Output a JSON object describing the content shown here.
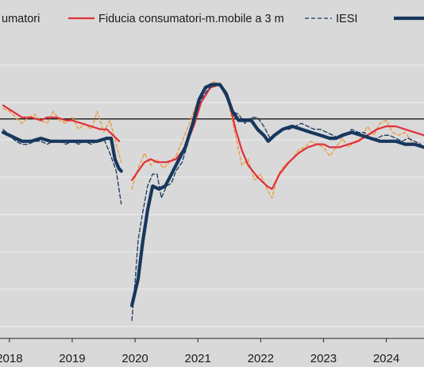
{
  "chart_data": {
    "type": "line",
    "xlabel": "",
    "ylabel": "",
    "xlim": [
      2017.85,
      2024.6
    ],
    "ylim": [
      0,
      100
    ],
    "x_ticks": [
      {
        "x": 2018.0,
        "label": "2018"
      },
      {
        "x": 2019.0,
        "label": "2019"
      },
      {
        "x": 2020.0,
        "label": "2020"
      },
      {
        "x": 2021.0,
        "label": "2021"
      },
      {
        "x": 2022.0,
        "label": "2022"
      },
      {
        "x": 2023.0,
        "label": "2023"
      },
      {
        "x": 2024.0,
        "label": "2024"
      }
    ],
    "hgrid": [
      4,
      16.5,
      29,
      41.5,
      54,
      66.5,
      79,
      91.5
    ],
    "reference_line": 73.5,
    "legend": [
      {
        "label": "umatori",
        "style": "dashed-orange"
      },
      {
        "label": "Fiducia consumatori-m.mobile a 3 m",
        "style": "solid-red"
      },
      {
        "label": "IESI",
        "style": "dashed-navy"
      },
      {
        "label": "",
        "style": "thick-navy"
      }
    ],
    "series": [
      {
        "key": "consumer_confidence",
        "color": "#ed9b3a",
        "width": 1.4,
        "dash": "4,3",
        "points": [
          [
            2017.9,
            77
          ],
          [
            2018.0,
            76
          ],
          [
            2018.1,
            74
          ],
          [
            2018.2,
            72
          ],
          [
            2018.3,
            74
          ],
          [
            2018.4,
            75
          ],
          [
            2018.5,
            73
          ],
          [
            2018.6,
            72
          ],
          [
            2018.7,
            76
          ],
          [
            2018.8,
            73
          ],
          [
            2018.9,
            72
          ],
          [
            2019.0,
            74
          ],
          [
            2019.1,
            70
          ],
          [
            2019.2,
            72
          ],
          [
            2019.3,
            70
          ],
          [
            2019.4,
            76
          ],
          [
            2019.5,
            69
          ],
          [
            2019.6,
            73
          ],
          [
            2019.7,
            65
          ],
          [
            2019.78,
            59
          ]
        ]
      },
      {
        "key": "consumer_confidence_2",
        "color": "#ed9b3a",
        "width": 1.4,
        "dash": "4,3",
        "points": [
          [
            2019.95,
            50
          ],
          [
            2020.05,
            57
          ],
          [
            2020.15,
            62
          ],
          [
            2020.25,
            58
          ],
          [
            2020.35,
            60
          ],
          [
            2020.45,
            57
          ],
          [
            2020.55,
            59
          ],
          [
            2020.65,
            61
          ],
          [
            2020.75,
            66
          ],
          [
            2020.85,
            71
          ],
          [
            2020.95,
            77
          ],
          [
            2021.05,
            81
          ],
          [
            2021.15,
            84
          ],
          [
            2021.25,
            86
          ],
          [
            2021.35,
            85
          ],
          [
            2021.45,
            82
          ],
          [
            2021.55,
            73
          ],
          [
            2021.62,
            66
          ],
          [
            2021.7,
            58
          ],
          [
            2021.8,
            60
          ],
          [
            2021.9,
            53
          ],
          [
            2022.0,
            55
          ],
          [
            2022.1,
            50
          ],
          [
            2022.18,
            47
          ],
          [
            2022.28,
            55
          ],
          [
            2022.38,
            58
          ],
          [
            2022.5,
            60
          ],
          [
            2022.6,
            63
          ],
          [
            2022.7,
            64
          ],
          [
            2022.8,
            66
          ],
          [
            2022.9,
            65
          ],
          [
            2023.0,
            64
          ],
          [
            2023.1,
            61
          ],
          [
            2023.2,
            64
          ],
          [
            2023.3,
            67
          ],
          [
            2023.4,
            64
          ],
          [
            2023.5,
            66
          ],
          [
            2023.6,
            67
          ],
          [
            2023.7,
            71
          ],
          [
            2023.8,
            68
          ],
          [
            2023.9,
            72
          ],
          [
            2024.0,
            73
          ],
          [
            2024.1,
            69
          ],
          [
            2024.2,
            68
          ],
          [
            2024.3,
            69
          ],
          [
            2024.4,
            66
          ],
          [
            2024.5,
            64
          ]
        ]
      },
      {
        "key": "confidence_3m",
        "color": "#e0303a",
        "width": 2.2,
        "dash": "",
        "points": [
          [
            2017.9,
            78
          ],
          [
            2018.05,
            76
          ],
          [
            2018.2,
            74
          ],
          [
            2018.35,
            74
          ],
          [
            2018.5,
            73
          ],
          [
            2018.6,
            74
          ],
          [
            2018.75,
            74
          ],
          [
            2018.9,
            73
          ],
          [
            2019.0,
            73
          ],
          [
            2019.15,
            72
          ],
          [
            2019.3,
            71
          ],
          [
            2019.45,
            70
          ],
          [
            2019.55,
            70
          ],
          [
            2019.65,
            68
          ],
          [
            2019.75,
            66
          ]
        ]
      },
      {
        "key": "confidence_3m_2",
        "color": "#e0303a",
        "width": 2.2,
        "dash": "",
        "points": [
          [
            2019.95,
            53
          ],
          [
            2020.05,
            56
          ],
          [
            2020.15,
            59
          ],
          [
            2020.25,
            60
          ],
          [
            2020.35,
            59
          ],
          [
            2020.5,
            59
          ],
          [
            2020.65,
            60
          ],
          [
            2020.8,
            64
          ],
          [
            2020.95,
            72
          ],
          [
            2021.05,
            79
          ],
          [
            2021.2,
            84
          ],
          [
            2021.35,
            85
          ],
          [
            2021.5,
            79
          ],
          [
            2021.6,
            70
          ],
          [
            2021.7,
            63
          ],
          [
            2021.8,
            58
          ],
          [
            2021.95,
            54
          ],
          [
            2022.1,
            51
          ],
          [
            2022.18,
            50
          ],
          [
            2022.3,
            55
          ],
          [
            2022.45,
            59
          ],
          [
            2022.6,
            62
          ],
          [
            2022.75,
            64
          ],
          [
            2022.9,
            65
          ],
          [
            2023.0,
            65
          ],
          [
            2023.1,
            64
          ],
          [
            2023.25,
            64
          ],
          [
            2023.4,
            65
          ],
          [
            2023.55,
            66
          ],
          [
            2023.7,
            68
          ],
          [
            2023.85,
            70
          ],
          [
            2024.0,
            71
          ],
          [
            2024.15,
            71
          ],
          [
            2024.3,
            70
          ],
          [
            2024.45,
            69
          ],
          [
            2024.6,
            68
          ]
        ]
      },
      {
        "key": "iesi",
        "color": "#17375e",
        "width": 1.3,
        "dash": "5,3",
        "points": [
          [
            2017.9,
            70
          ],
          [
            2018.0,
            68
          ],
          [
            2018.1,
            66
          ],
          [
            2018.2,
            65
          ],
          [
            2018.3,
            65
          ],
          [
            2018.4,
            66
          ],
          [
            2018.5,
            66
          ],
          [
            2018.6,
            65
          ],
          [
            2018.7,
            66
          ],
          [
            2018.8,
            66
          ],
          [
            2018.9,
            65
          ],
          [
            2019.0,
            66
          ],
          [
            2019.1,
            65
          ],
          [
            2019.2,
            66
          ],
          [
            2019.3,
            65
          ],
          [
            2019.4,
            66
          ],
          [
            2019.5,
            67
          ],
          [
            2019.6,
            62
          ],
          [
            2019.7,
            56
          ],
          [
            2019.78,
            45
          ]
        ]
      },
      {
        "key": "iesi_2",
        "color": "#17375e",
        "width": 1.3,
        "dash": "5,3",
        "points": [
          [
            2019.95,
            6
          ],
          [
            2020.0,
            19
          ],
          [
            2020.05,
            33
          ],
          [
            2020.12,
            42
          ],
          [
            2020.2,
            51
          ],
          [
            2020.28,
            55
          ],
          [
            2020.35,
            55
          ],
          [
            2020.42,
            47
          ],
          [
            2020.5,
            51
          ],
          [
            2020.58,
            52
          ],
          [
            2020.65,
            56
          ],
          [
            2020.75,
            59
          ],
          [
            2020.85,
            66
          ],
          [
            2020.95,
            75
          ],
          [
            2021.05,
            80
          ],
          [
            2021.15,
            83
          ],
          [
            2021.25,
            85
          ],
          [
            2021.35,
            85
          ],
          [
            2021.45,
            81
          ],
          [
            2021.55,
            76
          ],
          [
            2021.65,
            75
          ],
          [
            2021.75,
            72
          ],
          [
            2021.85,
            74
          ],
          [
            2021.95,
            74
          ],
          [
            2022.05,
            71
          ],
          [
            2022.15,
            67
          ],
          [
            2022.25,
            68
          ],
          [
            2022.35,
            70
          ],
          [
            2022.45,
            70
          ],
          [
            2022.55,
            71
          ],
          [
            2022.65,
            72
          ],
          [
            2022.75,
            71
          ],
          [
            2022.85,
            70
          ],
          [
            2022.95,
            70
          ],
          [
            2023.05,
            69
          ],
          [
            2023.15,
            68
          ],
          [
            2023.25,
            67
          ],
          [
            2023.35,
            68
          ],
          [
            2023.45,
            70
          ],
          [
            2023.55,
            69
          ],
          [
            2023.65,
            69
          ],
          [
            2023.75,
            67
          ],
          [
            2023.85,
            67
          ],
          [
            2023.95,
            68
          ],
          [
            2024.05,
            68
          ],
          [
            2024.15,
            67
          ],
          [
            2024.25,
            66
          ],
          [
            2024.35,
            67
          ],
          [
            2024.45,
            66
          ],
          [
            2024.55,
            65
          ]
        ]
      },
      {
        "key": "thick_navy",
        "color": "#17375e",
        "width": 4.2,
        "dash": "",
        "points": [
          [
            2017.9,
            69
          ],
          [
            2018.0,
            68
          ],
          [
            2018.1,
            67
          ],
          [
            2018.2,
            66
          ],
          [
            2018.35,
            66
          ],
          [
            2018.5,
            67
          ],
          [
            2018.65,
            66
          ],
          [
            2018.8,
            66
          ],
          [
            2019.0,
            66
          ],
          [
            2019.2,
            66
          ],
          [
            2019.4,
            66
          ],
          [
            2019.55,
            67
          ],
          [
            2019.62,
            67
          ],
          [
            2019.68,
            60
          ],
          [
            2019.74,
            57
          ],
          [
            2019.78,
            56
          ]
        ]
      },
      {
        "key": "thick_navy_2",
        "color": "#17375e",
        "width": 4.2,
        "dash": "",
        "points": [
          [
            2019.95,
            11
          ],
          [
            2020.05,
            20
          ],
          [
            2020.12,
            32
          ],
          [
            2020.2,
            43
          ],
          [
            2020.28,
            51
          ],
          [
            2020.38,
            50
          ],
          [
            2020.48,
            51
          ],
          [
            2020.58,
            55
          ],
          [
            2020.7,
            60
          ],
          [
            2020.8,
            64
          ],
          [
            2020.92,
            72
          ],
          [
            2021.02,
            80
          ],
          [
            2021.12,
            84
          ],
          [
            2021.22,
            85
          ],
          [
            2021.35,
            85
          ],
          [
            2021.45,
            82
          ],
          [
            2021.55,
            76
          ],
          [
            2021.65,
            73
          ],
          [
            2021.75,
            73
          ],
          [
            2021.85,
            73
          ],
          [
            2021.95,
            70
          ],
          [
            2022.05,
            68
          ],
          [
            2022.12,
            66
          ],
          [
            2022.22,
            68
          ],
          [
            2022.35,
            70
          ],
          [
            2022.5,
            71
          ],
          [
            2022.65,
            70
          ],
          [
            2022.8,
            69
          ],
          [
            2022.95,
            68
          ],
          [
            2023.1,
            67
          ],
          [
            2023.2,
            67
          ],
          [
            2023.3,
            68
          ],
          [
            2023.45,
            69
          ],
          [
            2023.6,
            68
          ],
          [
            2023.75,
            67
          ],
          [
            2023.9,
            66
          ],
          [
            2024.05,
            66
          ],
          [
            2024.15,
            66
          ],
          [
            2024.3,
            65
          ],
          [
            2024.45,
            65
          ],
          [
            2024.6,
            64
          ]
        ]
      }
    ]
  }
}
